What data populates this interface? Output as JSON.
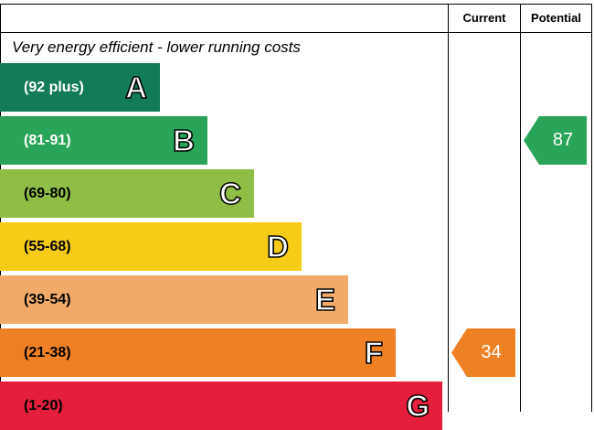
{
  "chart_data": {
    "type": "bar",
    "column_headers": {
      "current": "Current",
      "potential": "Potential"
    },
    "caption": "Very energy efficient - lower running costs",
    "bands": [
      {
        "letter": "A",
        "range": "(92 plus)",
        "min": 92,
        "max": 100,
        "color": "#137b58",
        "text_color": "#ffffff"
      },
      {
        "letter": "B",
        "range": "(81-91)",
        "min": 81,
        "max": 91,
        "color": "#2aa45a",
        "text_color": "#ffffff"
      },
      {
        "letter": "C",
        "range": "(69-80)",
        "min": 69,
        "max": 80,
        "color": "#8fbd45",
        "text_color": "#000000"
      },
      {
        "letter": "D",
        "range": "(55-68)",
        "min": 55,
        "max": 68,
        "color": "#f6cc18",
        "text_color": "#000000"
      },
      {
        "letter": "E",
        "range": "(39-54)",
        "min": 39,
        "max": 54,
        "color": "#f2aa6a",
        "text_color": "#000000"
      },
      {
        "letter": "F",
        "range": "(21-38)",
        "min": 21,
        "max": 38,
        "color": "#ef8125",
        "text_color": "#000000"
      },
      {
        "letter": "G",
        "range": "(1-20)",
        "min": 1,
        "max": 20,
        "color": "#e41f3d",
        "text_color": "#000000"
      }
    ],
    "current": {
      "value": 34,
      "label": "34",
      "band": "F",
      "color": "#ef8125"
    },
    "potential": {
      "value": 87,
      "label": "87",
      "band": "B",
      "color": "#2aa45a"
    }
  }
}
